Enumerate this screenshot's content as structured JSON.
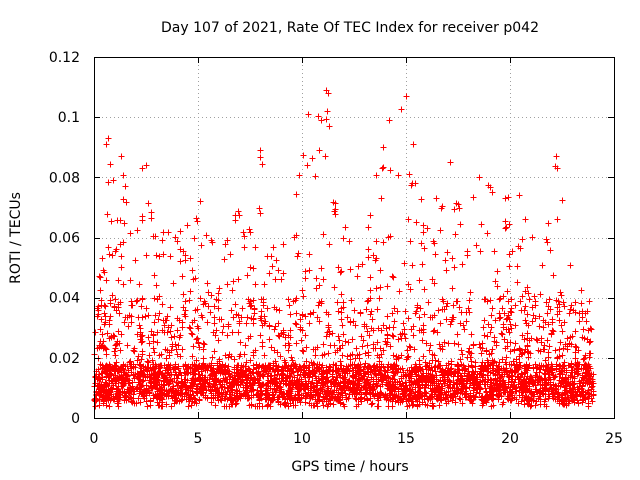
{
  "chart_data": {
    "type": "scatter",
    "title": "Day 107 of 2021, Rate Of TEC Index for receiver p042",
    "xlabel": "GPS time / hours",
    "ylabel": "ROTI / TECUs",
    "xlim": [
      0,
      25
    ],
    "ylim": [
      0,
      0.12
    ],
    "x_ticks": [
      "0",
      "5",
      "10",
      "15",
      "20",
      "25"
    ],
    "y_ticks": [
      "0",
      "0.02",
      "0.04",
      "0.06",
      "0.08",
      "0.1",
      "0.12"
    ],
    "x_tick_values": [
      0,
      5,
      10,
      15,
      20,
      25
    ],
    "y_tick_values": [
      0,
      0.02,
      0.04,
      0.06,
      0.08,
      0.1,
      0.12
    ],
    "grid": true,
    "marker": "plus",
    "series": [
      {
        "name": "ROTI",
        "color": "#ff0000",
        "x_range": [
          0,
          24
        ],
        "typical_range": [
          0.004,
          0.04
        ],
        "envelope": [
          [
            0.0,
            0.046
          ],
          [
            0.5,
            0.058
          ],
          [
            0.7,
            0.092
          ],
          [
            1.3,
            0.088
          ],
          [
            1.6,
            0.073
          ],
          [
            2.0,
            0.062
          ],
          [
            2.4,
            0.083
          ],
          [
            3.0,
            0.06
          ],
          [
            4.0,
            0.068
          ],
          [
            4.7,
            0.079
          ],
          [
            5.3,
            0.072
          ],
          [
            6.0,
            0.05
          ],
          [
            6.8,
            0.077
          ],
          [
            7.4,
            0.06
          ],
          [
            8.0,
            0.089
          ],
          [
            8.5,
            0.06
          ],
          [
            9.2,
            0.062
          ],
          [
            10.3,
            0.101
          ],
          [
            11.2,
            0.109
          ],
          [
            11.6,
            0.075
          ],
          [
            12.5,
            0.06
          ],
          [
            13.2,
            0.07
          ],
          [
            13.8,
            0.092
          ],
          [
            14.1,
            0.1
          ],
          [
            15.0,
            0.107
          ],
          [
            15.8,
            0.07
          ],
          [
            17.1,
            0.086
          ],
          [
            17.5,
            0.073
          ],
          [
            18.5,
            0.08
          ],
          [
            19.5,
            0.075
          ],
          [
            20.5,
            0.075
          ],
          [
            21.5,
            0.06
          ],
          [
            22.2,
            0.087
          ],
          [
            22.8,
            0.062
          ],
          [
            23.5,
            0.04
          ],
          [
            24.0,
            0.035
          ]
        ],
        "outliers": [
          [
            0.6,
            0.091
          ],
          [
            0.65,
            0.093
          ],
          [
            1.3,
            0.087
          ],
          [
            2.3,
            0.083
          ],
          [
            2.5,
            0.084
          ],
          [
            8.0,
            0.089
          ],
          [
            10.3,
            0.101
          ],
          [
            11.15,
            0.109
          ],
          [
            11.25,
            0.108
          ],
          [
            11.2,
            0.102
          ],
          [
            11.3,
            0.097
          ],
          [
            11.1,
            0.087
          ],
          [
            13.9,
            0.09
          ],
          [
            14.2,
            0.099
          ],
          [
            15.0,
            0.107
          ],
          [
            17.1,
            0.085
          ],
          [
            18.5,
            0.08
          ],
          [
            22.2,
            0.087
          ],
          [
            22.25,
            0.083
          ]
        ]
      }
    ]
  }
}
